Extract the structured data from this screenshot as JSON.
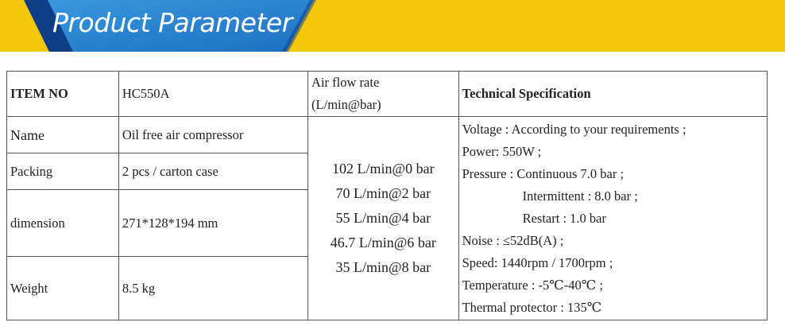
{
  "banner": {
    "title": "Product Parameter",
    "colors": {
      "yellow": "#f5c70a",
      "blue_light": "#2f8fd8",
      "blue_dark": "#0d3e86"
    }
  },
  "table": {
    "header": {
      "item_no_label": "ITEM NO",
      "item_no_value": "HC550A",
      "air_flow_label_line1": "Air flow rate",
      "air_flow_label_line2": "(L/min@bar)",
      "tech_spec_label": "Technical Specification"
    },
    "rows": [
      {
        "label": "Name",
        "value": "Oil free air compressor"
      },
      {
        "label": "Packing",
        "value": "2 pcs / carton case"
      },
      {
        "label": "dimension",
        "value": "271*128*194 mm"
      },
      {
        "label": "Weight",
        "value": "8.5 kg"
      }
    ],
    "air_flow": [
      "102 L/min@0 bar",
      "70 L/min@2 bar",
      "55 L/min@4 bar",
      "46.7 L/min@6 bar",
      "35 L/min@8 bar"
    ],
    "tech_spec": [
      "Voltage : According to your requirements ;",
      "Power: 550W ;",
      "Pressure : Continuous 7.0 bar ;",
      "Intermittent : 8.0 bar ;",
      "Restart : 1.0 bar",
      "Noise : ≤52dB(A) ;",
      "Speed: 1440rpm / 1700rpm ;",
      "Temperature : -5℃-40℃ ;",
      "Thermal protector : 135℃"
    ]
  }
}
